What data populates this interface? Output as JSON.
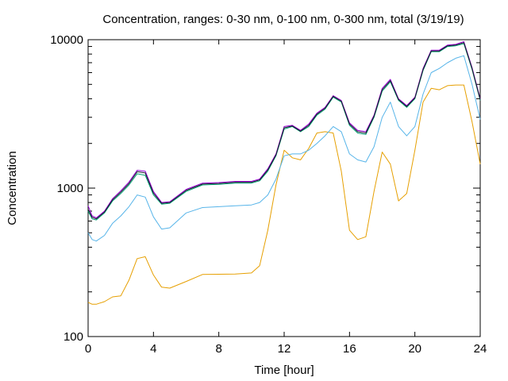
{
  "chart_data": {
    "type": "line",
    "title": "Concentration, ranges: 0-30 nm, 0-100 nm, 0-300 nm, total (3/19/19)",
    "xlabel": "Time [hour]",
    "ylabel": "Concentration",
    "xlim": [
      0,
      24
    ],
    "ylim": [
      100,
      10000
    ],
    "yscale": "log",
    "xticks": [
      "0",
      "4",
      "8",
      "12",
      "16",
      "20",
      "24"
    ],
    "yticks": [
      "100",
      "1000",
      "10000"
    ],
    "grid": false,
    "legend": "none",
    "x": [
      0,
      0.25,
      0.5,
      1,
      1.5,
      2,
      2.5,
      3,
      3.5,
      4,
      4.5,
      5,
      6,
      7,
      8,
      9,
      10,
      10.5,
      11,
      11.5,
      12,
      12.5,
      13,
      13.5,
      14,
      14.5,
      15,
      15.5,
      16,
      16.5,
      17,
      17.5,
      18,
      18.5,
      19,
      19.5,
      20,
      20.5,
      21,
      21.5,
      22,
      22.5,
      23,
      23.5,
      24
    ],
    "series": [
      {
        "color": "#e69f00",
        "values": [
          170,
          165,
          165,
          172,
          185,
          188,
          240,
          335,
          345,
          260,
          215,
          212,
          235,
          262,
          263,
          264,
          268,
          300,
          520,
          1050,
          1800,
          1600,
          1550,
          1850,
          2350,
          2400,
          2350,
          1300,
          520,
          450,
          470,
          950,
          1750,
          1450,
          820,
          920,
          1800,
          3800,
          4700,
          4600,
          4900,
          4950,
          4950,
          2800,
          1450
        ]
      },
      {
        "color": "#56b4e9",
        "values": [
          500,
          450,
          440,
          480,
          580,
          650,
          750,
          900,
          870,
          640,
          530,
          540,
          680,
          740,
          750,
          760,
          770,
          800,
          900,
          1150,
          1650,
          1700,
          1700,
          1800,
          2000,
          2250,
          2600,
          2400,
          1700,
          1550,
          1500,
          1900,
          3000,
          3800,
          2600,
          2250,
          2600,
          4300,
          6000,
          6400,
          7000,
          7500,
          7800,
          5000,
          2900
        ]
      },
      {
        "color": "#009e73",
        "values": [
          700,
          620,
          610,
          680,
          820,
          920,
          1050,
          1250,
          1220,
          900,
          780,
          790,
          950,
          1050,
          1060,
          1080,
          1080,
          1120,
          1300,
          1650,
          2500,
          2600,
          2400,
          2600,
          3100,
          3400,
          4100,
          3800,
          2650,
          2350,
          2300,
          3000,
          4500,
          5200,
          3900,
          3500,
          4000,
          6200,
          8300,
          8300,
          9000,
          9100,
          9400,
          6300,
          3900
        ]
      },
      {
        "color": "#9400d3",
        "values": [
          760,
          650,
          630,
          700,
          850,
          960,
          1100,
          1320,
          1300,
          950,
          800,
          810,
          980,
          1080,
          1090,
          1110,
          1110,
          1150,
          1350,
          1700,
          2600,
          2650,
          2450,
          2700,
          3200,
          3500,
          4200,
          3900,
          2750,
          2450,
          2400,
          3100,
          4700,
          5400,
          4000,
          3600,
          4100,
          6400,
          8500,
          8500,
          9200,
          9300,
          9700,
          6500,
          4000
        ]
      },
      {
        "color": "#1a1a2e",
        "values": [
          720,
          635,
          620,
          690,
          835,
          940,
          1075,
          1290,
          1265,
          925,
          790,
          800,
          965,
          1065,
          1075,
          1095,
          1095,
          1135,
          1325,
          1675,
          2550,
          2620,
          2420,
          2650,
          3150,
          3450,
          4150,
          3850,
          2700,
          2400,
          2350,
          3050,
          4600,
          5300,
          3950,
          3550,
          4050,
          6300,
          8400,
          8400,
          9100,
          9200,
          9550,
          6400,
          3950
        ]
      }
    ]
  }
}
